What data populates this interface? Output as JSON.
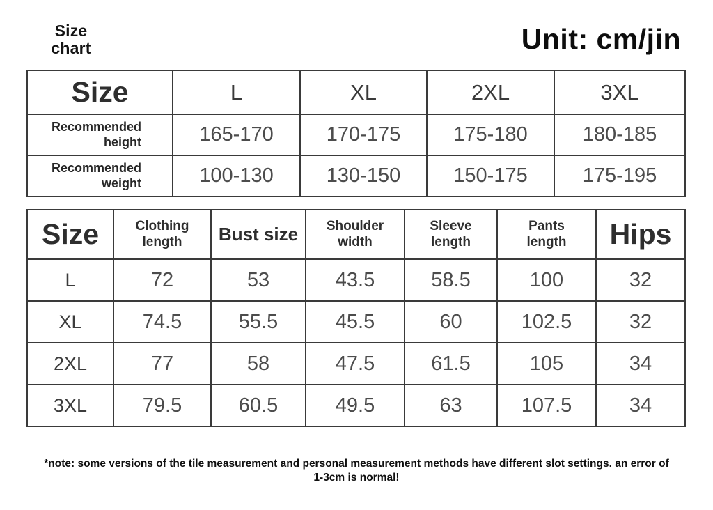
{
  "header": {
    "title_lines": [
      "Size",
      "chart"
    ],
    "unit_label": "Unit: cm/jin"
  },
  "note": {
    "lines": [
      "*note: some versions of the tile measurement and personal measurement methods have different slot settings. an error of",
      "1-3cm is normal!"
    ]
  },
  "chart_data": [
    {
      "type": "table",
      "title": "Size chart",
      "unit": "cm/jin",
      "columns": [
        "Size",
        "L",
        "XL",
        "2XL",
        "3XL"
      ],
      "rows": [
        [
          "Recommended\nheight",
          "165-170",
          "170-175",
          "175-180",
          "180-185"
        ],
        [
          "Recommended\nweight",
          "100-130",
          "130-150",
          "150-175",
          "175-195"
        ]
      ]
    },
    {
      "type": "table",
      "title": "Garment measurements",
      "unit": "cm",
      "columns": [
        "Size",
        "Clothing\nlength",
        "Bust size",
        "Shoulder\nwidth",
        "Sleeve\nlength",
        "Pants\nlength",
        "Hips"
      ],
      "rows": [
        [
          "L",
          "72",
          "53",
          "43.5",
          "58.5",
          "100",
          "32"
        ],
        [
          "XL",
          "74.5",
          "55.5",
          "45.5",
          "60",
          "102.5",
          "32"
        ],
        [
          "2XL",
          "77",
          "58",
          "47.5",
          "61.5",
          "105",
          "34"
        ],
        [
          "3XL",
          "79.5",
          "60.5",
          "49.5",
          "63",
          "107.5",
          "34"
        ]
      ]
    }
  ]
}
